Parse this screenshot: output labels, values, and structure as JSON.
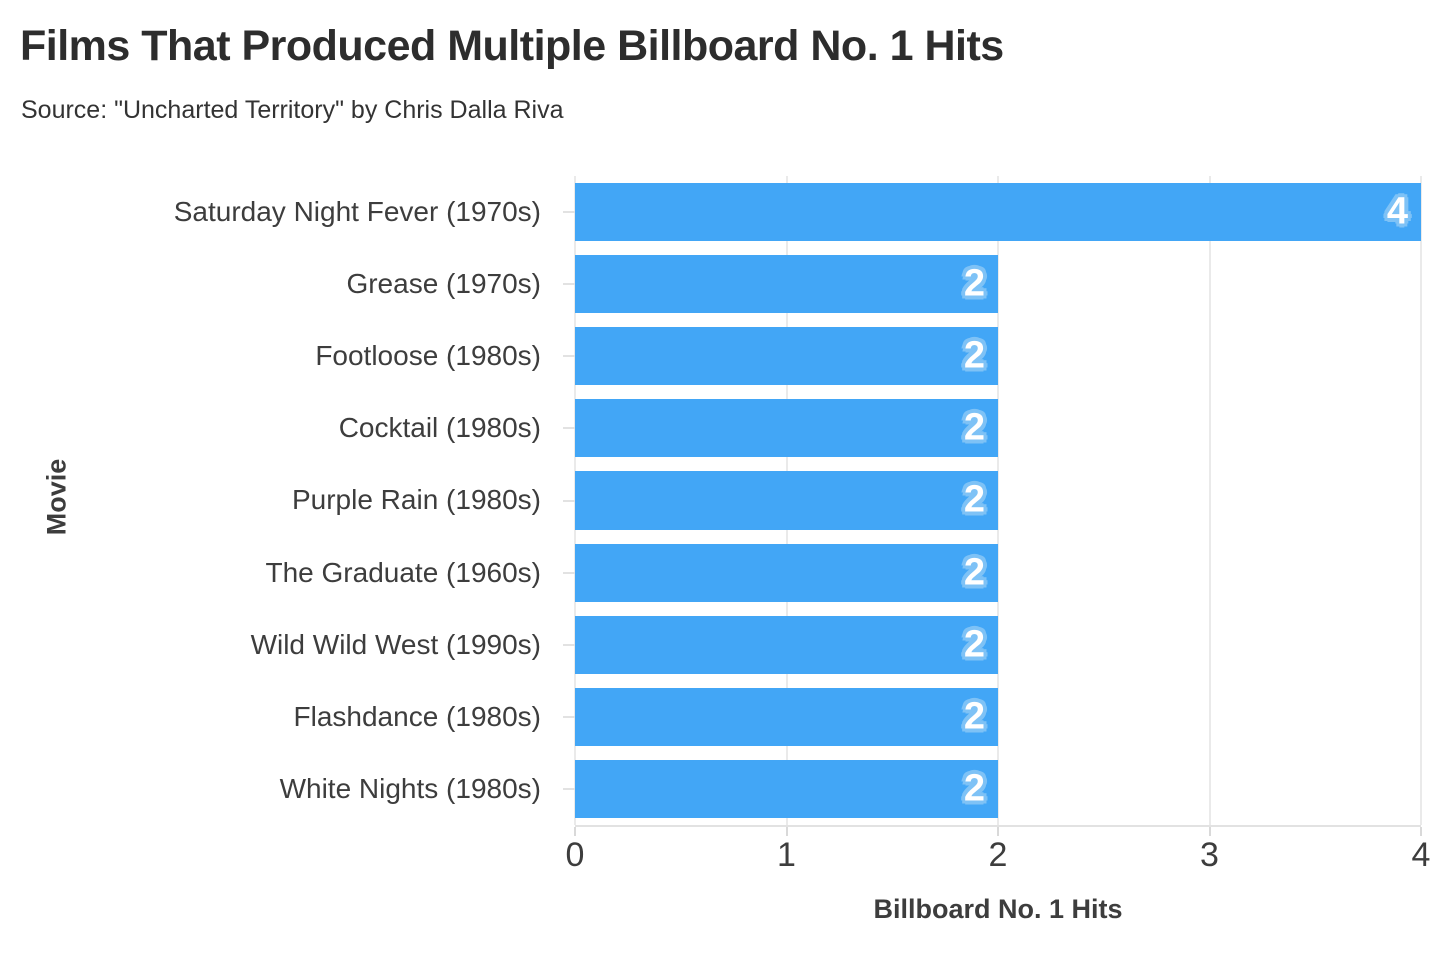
{
  "title": "Films That Produced Multiple Billboard No. 1 Hits",
  "subtitle": "Source: \"Uncharted Territory\" by Chris Dalla Riva",
  "chart_data": {
    "type": "bar",
    "orientation": "horizontal",
    "title": "Films That Produced Multiple Billboard No. 1 Hits",
    "subtitle": "Source: \"Uncharted Territory\" by Chris Dalla Riva",
    "categories": [
      "Saturday Night Fever (1970s)",
      "Grease (1970s)",
      "Footloose (1980s)",
      "Cocktail (1980s)",
      "Purple Rain (1980s)",
      "The Graduate (1960s)",
      "Wild Wild West (1990s)",
      "Flashdance (1980s)",
      "White Nights (1980s)"
    ],
    "values": [
      4,
      2,
      2,
      2,
      2,
      2,
      2,
      2,
      2
    ],
    "xlabel": "Billboard No. 1 Hits",
    "ylabel": "Movie",
    "xlim": [
      0,
      4
    ],
    "xticks": [
      0,
      1,
      2,
      3,
      4
    ],
    "grid": true,
    "legend": "none",
    "bar_color": "#42a6f6",
    "value_label_color": "#ffffff",
    "value_label_halo_color": "#7ec2f6",
    "gridline_color": "#eaeaea",
    "text_color": "#3d3d3d",
    "background_color": "#ffffff"
  }
}
